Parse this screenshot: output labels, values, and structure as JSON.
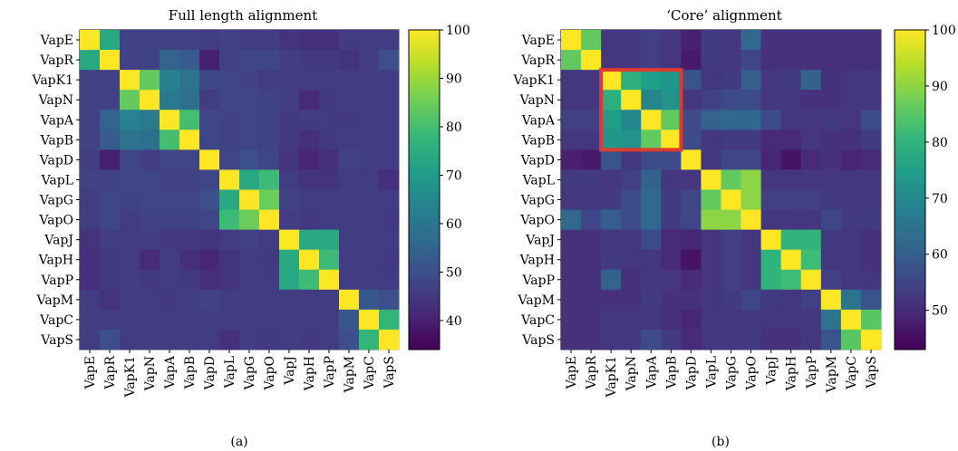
{
  "colors": {
    "viridis": [
      "#440154",
      "#482878",
      "#3e4989",
      "#31688e",
      "#26828e",
      "#1f9e89",
      "#35b779",
      "#6ece58",
      "#b5de2b",
      "#fde725"
    ],
    "highlight_box": "#e03a2f"
  },
  "chart_data": [
    {
      "type": "heatmap",
      "title": "Full length alignment",
      "sublabel": "(a)",
      "categories": [
        "VapE",
        "VapR",
        "VapK1",
        "VapN",
        "VapA",
        "VapB",
        "VapD",
        "VapL",
        "VapG",
        "VapO",
        "VapJ",
        "VapH",
        "VapP",
        "VapM",
        "VapC",
        "VapS"
      ],
      "colorbar": {
        "range": [
          34,
          100
        ],
        "ticks": [
          40,
          50,
          60,
          70,
          80,
          90,
          100
        ]
      },
      "values": [
        [
          100,
          74,
          47,
          47,
          47,
          47,
          46,
          47,
          46,
          46,
          44,
          43,
          43,
          46,
          46,
          46
        ],
        [
          74,
          100,
          47,
          47,
          55,
          53,
          40,
          47,
          48,
          48,
          46,
          45,
          45,
          44,
          46,
          50
        ],
        [
          47,
          47,
          100,
          84,
          63,
          59,
          48,
          48,
          47,
          46,
          46,
          46,
          46,
          46,
          46,
          46
        ],
        [
          47,
          47,
          84,
          100,
          61,
          58,
          46,
          48,
          48,
          47,
          46,
          42,
          45,
          46,
          46,
          46
        ],
        [
          47,
          55,
          63,
          61,
          100,
          80,
          48,
          47,
          48,
          47,
          45,
          46,
          46,
          45,
          46,
          46
        ],
        [
          47,
          53,
          59,
          58,
          80,
          100,
          48,
          47,
          48,
          47,
          45,
          43,
          45,
          46,
          46,
          46
        ],
        [
          46,
          40,
          48,
          46,
          48,
          48,
          100,
          48,
          50,
          48,
          44,
          41,
          43,
          47,
          46,
          46
        ],
        [
          47,
          47,
          48,
          48,
          47,
          47,
          48,
          100,
          74,
          79,
          46,
          44,
          44,
          46,
          46,
          43
        ],
        [
          46,
          48,
          47,
          48,
          48,
          48,
          50,
          74,
          100,
          85,
          47,
          46,
          46,
          46,
          46,
          46
        ],
        [
          46,
          48,
          46,
          47,
          47,
          47,
          48,
          79,
          85,
          100,
          46,
          45,
          46,
          46,
          46,
          45
        ],
        [
          44,
          46,
          46,
          46,
          45,
          45,
          44,
          46,
          47,
          46,
          100,
          74,
          74,
          46,
          46,
          46
        ],
        [
          43,
          45,
          46,
          42,
          46,
          43,
          41,
          44,
          46,
          45,
          74,
          100,
          79,
          46,
          46,
          45
        ],
        [
          43,
          45,
          46,
          45,
          46,
          45,
          43,
          44,
          46,
          46,
          74,
          79,
          100,
          46,
          46,
          46
        ],
        [
          46,
          44,
          46,
          46,
          45,
          46,
          47,
          46,
          46,
          46,
          46,
          46,
          46,
          100,
          52,
          50
        ],
        [
          46,
          46,
          46,
          46,
          46,
          46,
          46,
          46,
          46,
          46,
          46,
          46,
          46,
          52,
          100,
          77
        ],
        [
          46,
          50,
          46,
          46,
          46,
          46,
          46,
          43,
          46,
          45,
          46,
          45,
          46,
          50,
          77,
          100
        ]
      ]
    },
    {
      "type": "heatmap",
      "title": "‘Core’ alignment",
      "sublabel": "(b)",
      "categories": [
        "VapE",
        "VapR",
        "VapK1",
        "VapN",
        "VapA",
        "VapB",
        "VapD",
        "VapL",
        "VapG",
        "VapO",
        "VapJ",
        "VapH",
        "VapP",
        "VapM",
        "VapC",
        "VapS"
      ],
      "colorbar": {
        "range": [
          43,
          100
        ],
        "ticks": [
          50,
          60,
          70,
          80,
          90,
          100
        ]
      },
      "highlight": {
        "rows": [
          "VapK1",
          "VapB"
        ],
        "cols": [
          "VapK1",
          "VapB"
        ]
      },
      "values": [
        [
          100,
          86,
          52,
          52,
          54,
          52,
          48,
          53,
          52,
          62,
          51,
          51,
          51,
          51,
          51,
          51
        ],
        [
          86,
          100,
          52,
          52,
          54,
          52,
          47,
          53,
          52,
          55,
          51,
          51,
          51,
          51,
          51,
          51
        ],
        [
          52,
          52,
          100,
          79,
          75,
          73,
          58,
          52,
          53,
          60,
          52,
          53,
          61,
          51,
          52,
          52
        ],
        [
          52,
          52,
          79,
          100,
          69,
          72,
          52,
          54,
          56,
          56,
          52,
          52,
          51,
          51,
          52,
          52
        ],
        [
          54,
          54,
          75,
          69,
          100,
          86,
          56,
          61,
          62,
          62,
          56,
          52,
          52,
          53,
          52,
          56
        ],
        [
          52,
          52,
          73,
          72,
          86,
          100,
          56,
          52,
          53,
          53,
          50,
          50,
          52,
          51,
          51,
          53
        ],
        [
          48,
          47,
          58,
          52,
          56,
          56,
          100,
          52,
          55,
          55,
          49,
          46,
          50,
          51,
          49,
          50
        ],
        [
          53,
          53,
          52,
          54,
          61,
          52,
          52,
          100,
          86,
          90,
          52,
          52,
          52,
          52,
          52,
          52
        ],
        [
          52,
          52,
          53,
          56,
          62,
          53,
          55,
          86,
          100,
          90,
          54,
          54,
          54,
          53,
          52,
          52
        ],
        [
          62,
          55,
          60,
          56,
          62,
          53,
          55,
          90,
          90,
          100,
          52,
          52,
          52,
          55,
          53,
          53
        ],
        [
          51,
          51,
          52,
          52,
          56,
          50,
          49,
          52,
          54,
          52,
          100,
          80,
          80,
          53,
          52,
          51
        ],
        [
          51,
          51,
          53,
          52,
          52,
          50,
          46,
          52,
          54,
          52,
          80,
          100,
          82,
          52,
          52,
          51
        ],
        [
          51,
          51,
          61,
          51,
          52,
          52,
          50,
          52,
          54,
          52,
          80,
          82,
          100,
          54,
          52,
          52
        ],
        [
          51,
          51,
          51,
          51,
          53,
          51,
          51,
          52,
          53,
          55,
          53,
          52,
          54,
          100,
          65,
          58
        ],
        [
          51,
          51,
          52,
          52,
          52,
          51,
          49,
          52,
          52,
          53,
          52,
          52,
          52,
          65,
          100,
          85
        ],
        [
          51,
          51,
          52,
          52,
          56,
          53,
          50,
          52,
          52,
          53,
          51,
          51,
          52,
          58,
          85,
          100
        ]
      ]
    }
  ]
}
